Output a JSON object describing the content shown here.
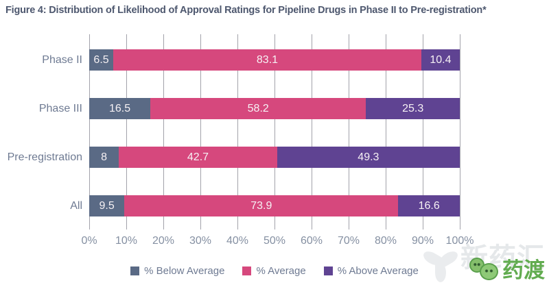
{
  "title": "Figure 4: Distribution of Likelihood of Approval Ratings for Pipeline Drugs in Phase II to Pre-registration*",
  "chart_data": {
    "type": "bar",
    "orientation": "horizontal",
    "stacked": true,
    "categories": [
      "Phase II",
      "Phase III",
      "Pre-registration",
      "All"
    ],
    "series": [
      {
        "name": "% Below Average",
        "color": "#5a6a85",
        "values": [
          6.5,
          16.5,
          8,
          9.5
        ]
      },
      {
        "name": "% Average",
        "color": "#d6487d",
        "values": [
          83.1,
          58.2,
          42.7,
          73.9
        ]
      },
      {
        "name": "% Above Average",
        "color": "#5f4392",
        "values": [
          10.4,
          25.3,
          49.3,
          16.6
        ]
      }
    ],
    "x_ticks": [
      "0%",
      "10%",
      "20%",
      "30%",
      "40%",
      "50%",
      "60%",
      "70%",
      "80%",
      "90%",
      "100%"
    ],
    "xlim": [
      0,
      100
    ],
    "grid": true,
    "gridline_color": "#a2a2aa",
    "bar_label_color": "#f6f1f4",
    "legend_position": "bottom"
  },
  "watermark": {
    "background_text": "新药汇",
    "logo_text": "药渡",
    "logo_color": "#62ac50"
  }
}
